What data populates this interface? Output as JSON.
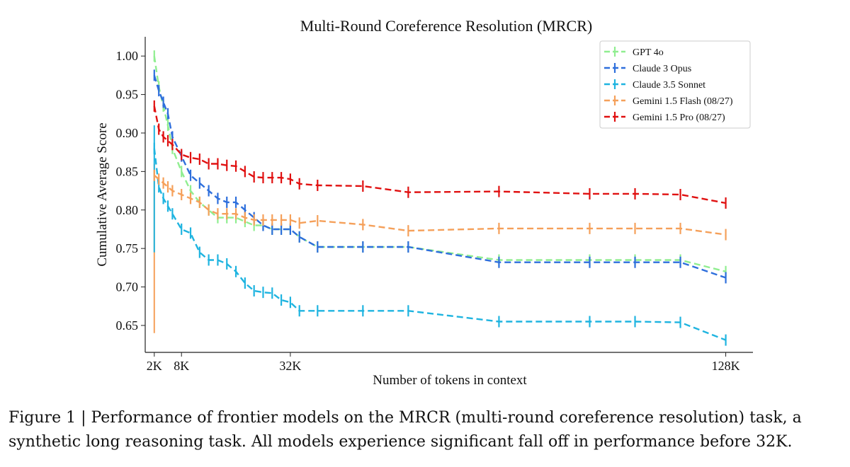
{
  "chart_data": {
    "type": "line",
    "title": "Multi-Round Coreference Resolution (MRCR)",
    "xlabel": "Number of tokens in context",
    "ylabel": "Cumulative Average Score",
    "xlim": [
      0,
      134
    ],
    "ylim": [
      0.615,
      1.025
    ],
    "x_ticks": [
      {
        "value": 2,
        "label": "2K"
      },
      {
        "value": 8,
        "label": "8K"
      },
      {
        "value": 32,
        "label": "32K"
      },
      {
        "value": 128,
        "label": "128K"
      }
    ],
    "y_ticks": [
      {
        "value": 0.65,
        "label": "0.65"
      },
      {
        "value": 0.7,
        "label": "0.70"
      },
      {
        "value": 0.75,
        "label": "0.75"
      },
      {
        "value": 0.8,
        "label": "0.80"
      },
      {
        "value": 0.85,
        "label": "0.85"
      },
      {
        "value": 0.9,
        "label": "0.90"
      },
      {
        "value": 0.95,
        "label": "0.95"
      },
      {
        "value": 1.0,
        "label": "1.00"
      }
    ],
    "legend_position": "top-right",
    "x": [
      2,
      3,
      4,
      5,
      6,
      8,
      10,
      12,
      14,
      16,
      18,
      20,
      22,
      24,
      26,
      28,
      30,
      32,
      34,
      38,
      48,
      58,
      78,
      98,
      108,
      118,
      128
    ],
    "series": [
      {
        "name": "GPT 4o",
        "color": "#90ee90",
        "values": [
          1.0,
          0.96,
          0.935,
          0.91,
          0.88,
          0.85,
          0.825,
          0.81,
          0.8,
          0.79,
          0.79,
          0.79,
          0.785,
          0.78,
          0.78,
          0.775,
          0.775,
          0.775,
          0.765,
          0.752,
          0.752,
          0.752,
          0.735,
          0.735,
          0.735,
          0.735,
          0.72
        ]
      },
      {
        "name": "Claude 3 Opus",
        "color": "#2e6fdc",
        "values": [
          0.975,
          0.955,
          0.94,
          0.925,
          0.895,
          0.87,
          0.845,
          0.835,
          0.825,
          0.815,
          0.81,
          0.81,
          0.8,
          0.79,
          0.78,
          0.775,
          0.775,
          0.775,
          0.765,
          0.752,
          0.752,
          0.752,
          0.732,
          0.732,
          0.732,
          0.732,
          0.712
        ]
      },
      {
        "name": "Claude 3.5 Sonnet",
        "color": "#1fb4e0",
        "values": [
          0.88,
          0.83,
          0.815,
          0.805,
          0.795,
          0.775,
          0.77,
          0.745,
          0.735,
          0.735,
          0.73,
          0.72,
          0.705,
          0.695,
          0.693,
          0.692,
          0.683,
          0.68,
          0.669,
          0.669,
          0.669,
          0.669,
          0.655,
          0.655,
          0.655,
          0.654,
          0.631
        ]
      },
      {
        "name": "Gemini 1.5 Flash (08/27)",
        "color": "#f5a05a",
        "values": [
          0.845,
          0.84,
          0.835,
          0.83,
          0.825,
          0.82,
          0.815,
          0.81,
          0.8,
          0.795,
          0.795,
          0.795,
          0.79,
          0.787,
          0.787,
          0.787,
          0.787,
          0.787,
          0.783,
          0.786,
          0.781,
          0.773,
          0.776,
          0.776,
          0.776,
          0.776,
          0.768
        ]
      },
      {
        "name": "Gemini 1.5 Pro (08/27)",
        "color": "#e01010",
        "values": [
          0.935,
          0.905,
          0.895,
          0.89,
          0.885,
          0.872,
          0.868,
          0.866,
          0.86,
          0.86,
          0.858,
          0.857,
          0.85,
          0.843,
          0.842,
          0.842,
          0.842,
          0.84,
          0.834,
          0.832,
          0.831,
          0.823,
          0.824,
          0.821,
          0.821,
          0.82,
          0.809
        ]
      }
    ],
    "spikes": [
      {
        "series": "Gemini 1.5 Flash (08/27)",
        "x": 2,
        "values": [
          0.64,
          0.86
        ]
      },
      {
        "series": "Claude 3.5 Sonnet",
        "x": 2,
        "values": [
          0.745,
          0.91
        ]
      }
    ]
  },
  "caption": {
    "line1": "Figure 1 | Performance of frontier models on the MRCR (multi-round coreference resolution) task, a",
    "line2": "synthetic long reasoning task. All models experience significant fall off in performance before 32K."
  }
}
